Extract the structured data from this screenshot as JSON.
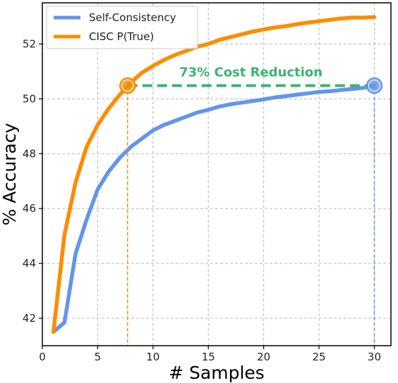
{
  "chart_data": {
    "type": "line",
    "title": "",
    "xlabel": "# Samples",
    "ylabel": "% Accuracy",
    "xlim": [
      0,
      31.5
    ],
    "ylim": [
      41,
      53.5
    ],
    "xticks": [
      0,
      5,
      10,
      15,
      20,
      25,
      30
    ],
    "yticks": [
      42,
      44,
      46,
      48,
      50,
      52
    ],
    "grid": true,
    "legend_position": "top-left",
    "series": [
      {
        "name": "Self-Consistency",
        "color": "#6495ED",
        "x": [
          1,
          2,
          3,
          4,
          5,
          6,
          7,
          8,
          9,
          10,
          11,
          12,
          13,
          14,
          15,
          16,
          17,
          18,
          19,
          20,
          21,
          22,
          23,
          24,
          25,
          26,
          27,
          28,
          29,
          30
        ],
        "y": [
          41.5,
          41.85,
          44.35,
          45.6,
          46.7,
          47.35,
          47.85,
          48.25,
          48.55,
          48.85,
          49.05,
          49.2,
          49.35,
          49.5,
          49.6,
          49.72,
          49.8,
          49.86,
          49.92,
          49.98,
          50.05,
          50.1,
          50.15,
          50.2,
          50.25,
          50.28,
          50.32,
          50.36,
          50.4,
          50.48
        ]
      },
      {
        "name": "CISC P(True)",
        "color": "#FF8C00",
        "x": [
          1,
          2,
          3,
          4,
          5,
          6,
          7,
          8,
          9,
          10,
          11,
          12,
          13,
          14,
          15,
          16,
          17,
          18,
          19,
          20,
          21,
          22,
          23,
          24,
          25,
          26,
          27,
          28,
          29,
          30
        ],
        "y": [
          41.5,
          45.05,
          46.95,
          48.25,
          49.05,
          49.65,
          50.15,
          50.6,
          50.95,
          51.2,
          51.42,
          51.6,
          51.75,
          51.9,
          52.0,
          52.15,
          52.25,
          52.35,
          52.45,
          52.53,
          52.6,
          52.65,
          52.72,
          52.78,
          52.83,
          52.88,
          52.93,
          52.96,
          52.96,
          52.98
        ]
      }
    ],
    "annotation": {
      "text": "73% Cost Reduction",
      "color": "#3CB371",
      "level": 50.48,
      "from_x": 7.7,
      "to_x": 30
    }
  }
}
